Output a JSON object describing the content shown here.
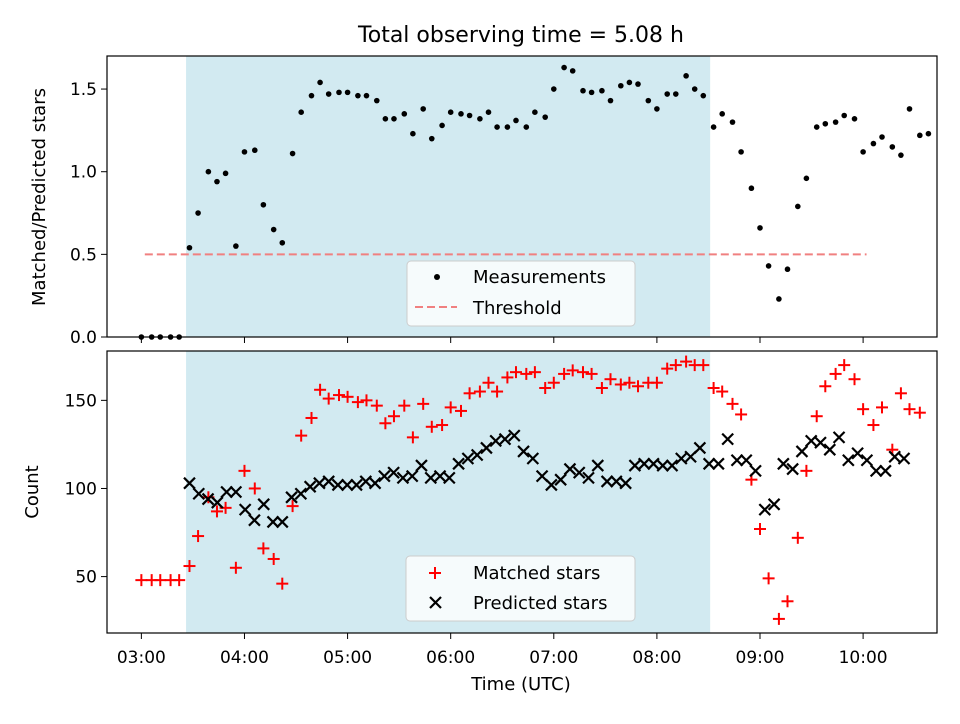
{
  "chart_data": [
    {
      "type": "scatter",
      "title": "Total observing time = 5.08 h",
      "ylabel": "Matched/Predicted stars",
      "xlabel": "",
      "ylim": [
        0,
        1.7
      ],
      "yticks": [
        0.0,
        0.5,
        1.0,
        1.5
      ],
      "ytick_labels": [
        "0.0",
        "0.5",
        "1.0",
        "1.5"
      ],
      "observing_window": {
        "start": "03:26",
        "end": "08:31",
        "color": "#add8e6"
      },
      "legend": {
        "placement": "lower-center",
        "entries": [
          "Measurements",
          "Threshold"
        ]
      },
      "threshold": {
        "value": 0.5,
        "x_start": "03:02",
        "x_end": "10:02",
        "color": "#f08080",
        "style": "dashed"
      },
      "series": [
        {
          "name": "Measurements",
          "color": "#000000",
          "marker": "dot",
          "points": [
            [
              "03:00",
              0.0
            ],
            [
              "03:06",
              0.0
            ],
            [
              "03:11",
              0.0
            ],
            [
              "03:17",
              0.0
            ],
            [
              "03:22",
              0.0
            ],
            [
              "03:28",
              0.54
            ],
            [
              "03:33",
              0.75
            ],
            [
              "03:39",
              1.0
            ],
            [
              "03:44",
              0.94
            ],
            [
              "03:49",
              0.99
            ],
            [
              "03:55",
              0.55
            ],
            [
              "04:00",
              1.12
            ],
            [
              "04:06",
              1.13
            ],
            [
              "04:11",
              0.8
            ],
            [
              "04:17",
              0.65
            ],
            [
              "04:22",
              0.57
            ],
            [
              "04:28",
              1.11
            ],
            [
              "04:33",
              1.36
            ],
            [
              "04:39",
              1.46
            ],
            [
              "04:44",
              1.54
            ],
            [
              "04:49",
              1.47
            ],
            [
              "04:55",
              1.48
            ],
            [
              "05:00",
              1.48
            ],
            [
              "05:06",
              1.46
            ],
            [
              "05:11",
              1.46
            ],
            [
              "05:17",
              1.43
            ],
            [
              "05:22",
              1.32
            ],
            [
              "05:27",
              1.32
            ],
            [
              "05:33",
              1.35
            ],
            [
              "05:38",
              1.23
            ],
            [
              "05:44",
              1.38
            ],
            [
              "05:49",
              1.2
            ],
            [
              "05:55",
              1.28
            ],
            [
              "06:00",
              1.36
            ],
            [
              "06:06",
              1.35
            ],
            [
              "06:11",
              1.34
            ],
            [
              "06:17",
              1.32
            ],
            [
              "06:22",
              1.36
            ],
            [
              "06:27",
              1.27
            ],
            [
              "06:33",
              1.27
            ],
            [
              "06:38",
              1.31
            ],
            [
              "06:44",
              1.27
            ],
            [
              "06:49",
              1.36
            ],
            [
              "06:55",
              1.33
            ],
            [
              "07:00",
              1.5
            ],
            [
              "07:06",
              1.63
            ],
            [
              "07:11",
              1.61
            ],
            [
              "07:17",
              1.49
            ],
            [
              "07:22",
              1.48
            ],
            [
              "07:28",
              1.49
            ],
            [
              "07:33",
              1.43
            ],
            [
              "07:39",
              1.52
            ],
            [
              "07:44",
              1.54
            ],
            [
              "07:49",
              1.53
            ],
            [
              "07:55",
              1.43
            ],
            [
              "08:00",
              1.38
            ],
            [
              "08:06",
              1.47
            ],
            [
              "08:11",
              1.47
            ],
            [
              "08:17",
              1.58
            ],
            [
              "08:22",
              1.5
            ],
            [
              "08:27",
              1.46
            ],
            [
              "08:33",
              1.27
            ],
            [
              "08:38",
              1.35
            ],
            [
              "08:44",
              1.3
            ],
            [
              "08:49",
              1.12
            ],
            [
              "08:55",
              0.9
            ],
            [
              "09:00",
              0.66
            ],
            [
              "09:05",
              0.43
            ],
            [
              "09:11",
              0.23
            ],
            [
              "09:16",
              0.41
            ],
            [
              "09:22",
              0.79
            ],
            [
              "09:27",
              0.96
            ],
            [
              "09:33",
              1.27
            ],
            [
              "09:38",
              1.29
            ],
            [
              "09:44",
              1.3
            ],
            [
              "09:49",
              1.34
            ],
            [
              "09:55",
              1.32
            ],
            [
              "10:00",
              1.12
            ],
            [
              "10:06",
              1.17
            ],
            [
              "10:11",
              1.21
            ],
            [
              "10:17",
              1.15
            ],
            [
              "10:22",
              1.1
            ],
            [
              "10:27",
              1.38
            ],
            [
              "10:33",
              1.22
            ],
            [
              "10:38",
              1.23
            ]
          ]
        }
      ]
    },
    {
      "type": "scatter",
      "title": "",
      "ylabel": "Count",
      "xlabel": "Time (UTC)",
      "ylim": [
        18,
        178
      ],
      "yticks": [
        50,
        100,
        150
      ],
      "ytick_labels": [
        "50",
        "100",
        "150"
      ],
      "xlim": [
        "02:40",
        "10:43"
      ],
      "xticks": [
        "03:00",
        "04:00",
        "05:00",
        "06:00",
        "07:00",
        "08:00",
        "09:00",
        "10:00"
      ],
      "xtick_labels": [
        "03:00",
        "04:00",
        "05:00",
        "06:00",
        "07:00",
        "08:00",
        "09:00",
        "10:00"
      ],
      "observing_window": {
        "start": "03:26",
        "end": "08:31",
        "color": "#add8e6"
      },
      "legend": {
        "placement": "lower-center",
        "entries": [
          "Matched stars",
          "Predicted stars"
        ]
      },
      "series": [
        {
          "name": "Matched stars",
          "color": "#ff0000",
          "marker": "plus",
          "values": [
            48,
            48,
            48,
            48,
            48,
            56,
            73,
            95,
            87,
            89,
            55,
            110,
            100,
            66,
            60,
            46,
            90,
            130,
            140,
            156,
            151,
            153,
            152,
            149,
            150,
            147,
            137,
            141,
            147,
            129,
            148,
            135,
            136,
            146,
            144,
            154,
            155,
            160,
            155,
            163,
            166,
            165,
            166,
            157,
            160,
            165,
            167,
            166,
            165,
            157,
            162,
            159,
            160,
            158,
            160,
            160,
            168,
            170,
            172,
            170,
            170,
            157,
            155,
            148,
            142,
            105,
            77,
            49,
            26,
            36,
            72,
            110,
            141,
            158,
            165,
            170,
            162,
            145,
            136,
            146,
            122,
            154,
            145,
            143
          ]
        },
        {
          "name": "Predicted stars",
          "color": "#000000",
          "marker": "x",
          "values": [
            103,
            97,
            94,
            92,
            98,
            98,
            88,
            82,
            91,
            81,
            81,
            95,
            97,
            101,
            103,
            104,
            102,
            102,
            102,
            104,
            103,
            107,
            109,
            106,
            107,
            113,
            106,
            107,
            106,
            114,
            117,
            119,
            123,
            127,
            128,
            130,
            121,
            117,
            107,
            102,
            105,
            111,
            109,
            106,
            113,
            104,
            104,
            103,
            113,
            114,
            114,
            113,
            113,
            117,
            118,
            123,
            114,
            114,
            128,
            116,
            116,
            110,
            88,
            91,
            114,
            111,
            121,
            127,
            126,
            122,
            129,
            116,
            120,
            116,
            110,
            110,
            118,
            117
          ]
        }
      ],
      "x_start_predicted": "03:28",
      "x_step_minutes": 5.4
    }
  ]
}
